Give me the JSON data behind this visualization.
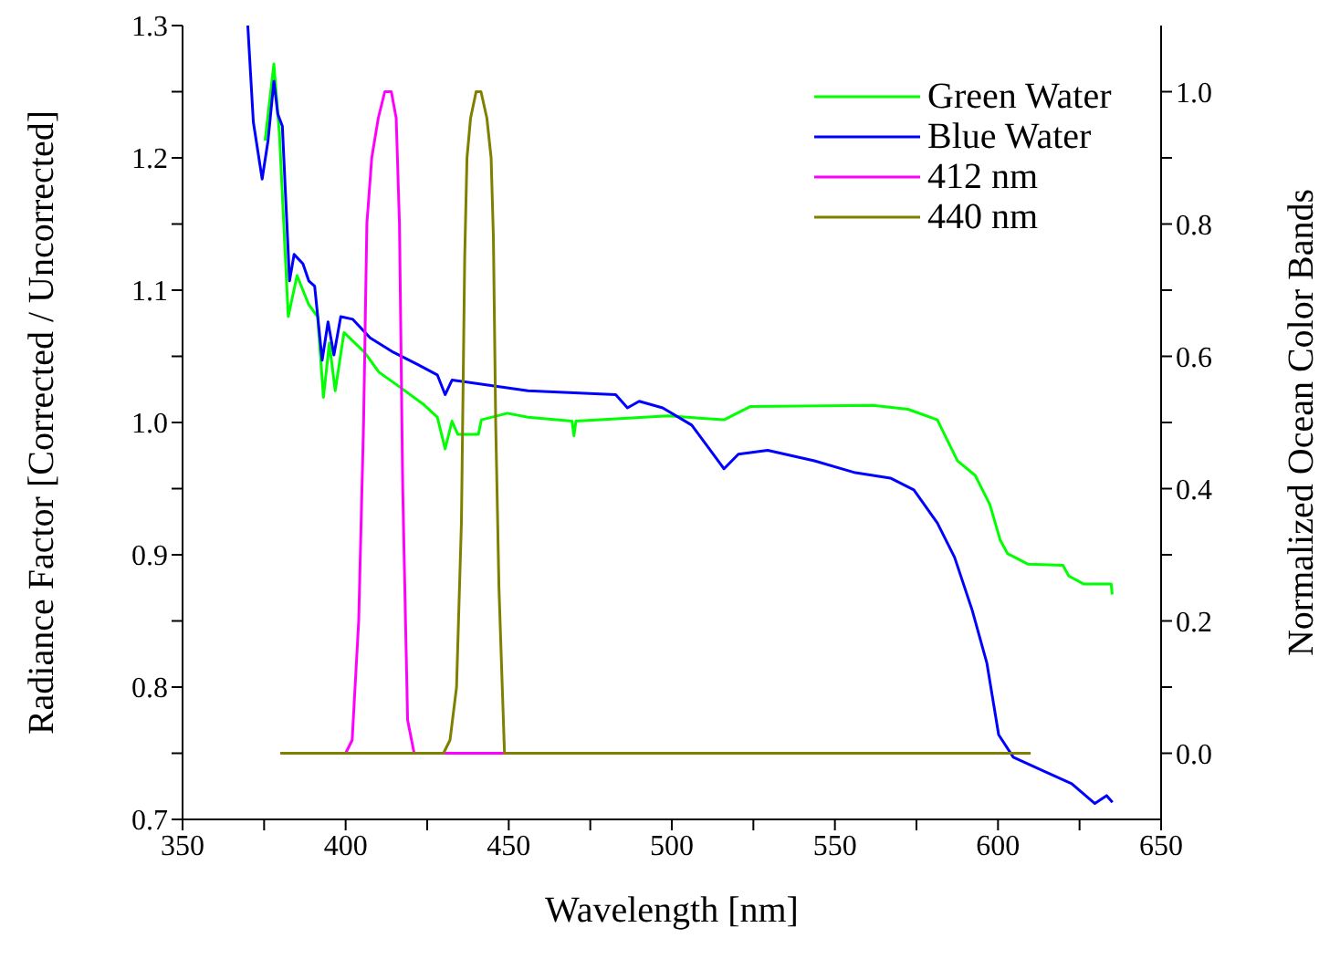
{
  "chart_data": {
    "type": "line",
    "xlabel": "Wavelength [nm]",
    "ylabel": "Radiance Factor [Corrected / Uncorrected]",
    "y2label": "Normalized Ocean Color Bands",
    "xlim": [
      350,
      650
    ],
    "xticks": [
      350,
      {
        "value": 375,
        "label": null
      },
      400,
      {
        "value": 425,
        "label": null
      },
      450,
      {
        "value": 475,
        "label": null
      },
      500,
      {
        "value": 525,
        "label": null
      },
      550,
      {
        "value": 575,
        "label": null
      },
      600,
      {
        "value": 625,
        "label": null
      },
      650
    ],
    "ylim": [
      0.7,
      1.3
    ],
    "yticks": [
      0.7,
      {
        "value": 0.75,
        "label": null
      },
      0.8,
      {
        "value": 0.85,
        "label": null
      },
      0.9,
      {
        "value": 0.95,
        "label": null
      },
      {
        "value": 1.0,
        "label": "1.0"
      },
      {
        "value": 1.05,
        "label": null
      },
      1.1,
      {
        "value": 1.15,
        "label": null
      },
      1.2,
      {
        "value": 1.25,
        "label": null
      },
      1.3
    ],
    "y2lim": [
      -0.1,
      1.1
    ],
    "y2ticks": [
      {
        "value": 0,
        "label": "0.0"
      },
      {
        "value": 0.1,
        "label": null
      },
      0.2,
      {
        "value": 0.3,
        "label": null
      },
      0.4,
      {
        "value": 0.5,
        "label": null
      },
      0.6,
      {
        "value": 0.7,
        "label": null
      },
      0.8,
      {
        "value": 0.9,
        "label": null
      },
      {
        "value": 1.0,
        "label": "1.0"
      }
    ],
    "grid": false,
    "legend": "top right",
    "marker": "none",
    "line_style": "solid",
    "series": [
      {
        "name": "Green Water",
        "color": "#00ff00",
        "x": [
          375.3,
          378,
          379.7,
          382.4,
          385.1,
          388.7,
          391.4,
          393.2,
          395,
          396.8,
          399.5,
          405.8,
          410.2,
          416.5,
          423.7,
          428.1,
          430.5,
          432.6,
          434.4,
          440.7,
          441.6,
          449.6,
          455.9,
          469.4,
          470,
          470.6,
          498.9,
          516,
          524,
          561.7,
          572.4,
          581.4,
          587.6,
          593,
          597.5,
          600.7,
          602.9,
          609.1,
          619.9,
          621.7,
          626.2,
          634.7,
          635
        ],
        "values": [
          1.213,
          1.271,
          1.218,
          1.08,
          1.111,
          1.089,
          1.08,
          1.019,
          1.06,
          1.024,
          1.068,
          1.053,
          1.038,
          1.027,
          1.014,
          1.004,
          0.98,
          1.001,
          0.991,
          0.991,
          1.002,
          1.007,
          1.004,
          1.001,
          0.99,
          1.001,
          1.005,
          1.002,
          1.012,
          1.013,
          1.01,
          1.002,
          0.971,
          0.96,
          0.938,
          0.911,
          0.901,
          0.893,
          0.892,
          0.884,
          0.878,
          0.878,
          0.87
        ]
      },
      {
        "name": "Blue Water",
        "color": "#0000ff",
        "x": [
          370,
          371.7,
          374.4,
          376.2,
          378,
          379.2,
          380.6,
          382.8,
          384.2,
          386.9,
          388.7,
          390.5,
          392.8,
          394.6,
          396.4,
          398.5,
          402.2,
          407.5,
          414.7,
          421.9,
          428.1,
          430.5,
          432.6,
          441.6,
          455.9,
          482.8,
          486.4,
          490,
          497.2,
          506.1,
          516,
          520.4,
          529.4,
          543.7,
          556.3,
          567,
          574.2,
          581.4,
          586.7,
          592.1,
          596.6,
          600.2,
          604.7,
          613.6,
          622.6,
          629.7,
          633.3,
          635.1
        ],
        "values": [
          1.3,
          1.227,
          1.184,
          1.213,
          1.258,
          1.233,
          1.224,
          1.107,
          1.127,
          1.12,
          1.107,
          1.103,
          1.047,
          1.076,
          1.051,
          1.08,
          1.078,
          1.064,
          1.053,
          1.044,
          1.036,
          1.021,
          1.032,
          1.029,
          1.024,
          1.021,
          1.011,
          1.016,
          1.011,
          0.998,
          0.965,
          0.976,
          0.979,
          0.971,
          0.962,
          0.958,
          0.949,
          0.924,
          0.898,
          0.858,
          0.818,
          0.764,
          0.747,
          0.737,
          0.727,
          0.712,
          0.718,
          0.713
        ]
      },
      {
        "name": "412 nm",
        "color": "#ff00ff",
        "axis": "y2",
        "x": [
          380,
          400,
          402,
          404,
          405.5,
          406.5,
          408,
          410,
          412,
          414,
          415.5,
          416.5,
          417.5,
          419,
          421,
          610
        ],
        "values": [
          0,
          0,
          0.02,
          0.2,
          0.5,
          0.8,
          0.9,
          0.96,
          1.0,
          1.0,
          0.96,
          0.8,
          0.4,
          0.05,
          0,
          0
        ]
      },
      {
        "name": "440 nm",
        "color": "#808000",
        "axis": "y2",
        "x": [
          380,
          430,
          432,
          434,
          435.5,
          436.5,
          437.2,
          438.3,
          440,
          441.5,
          443.3,
          444.6,
          445.3,
          446,
          447,
          448.7,
          610
        ],
        "values": [
          0,
          0,
          0.02,
          0.1,
          0.35,
          0.75,
          0.9,
          0.96,
          1.0,
          1.0,
          0.96,
          0.9,
          0.78,
          0.5,
          0.25,
          0,
          0
        ]
      }
    ]
  }
}
